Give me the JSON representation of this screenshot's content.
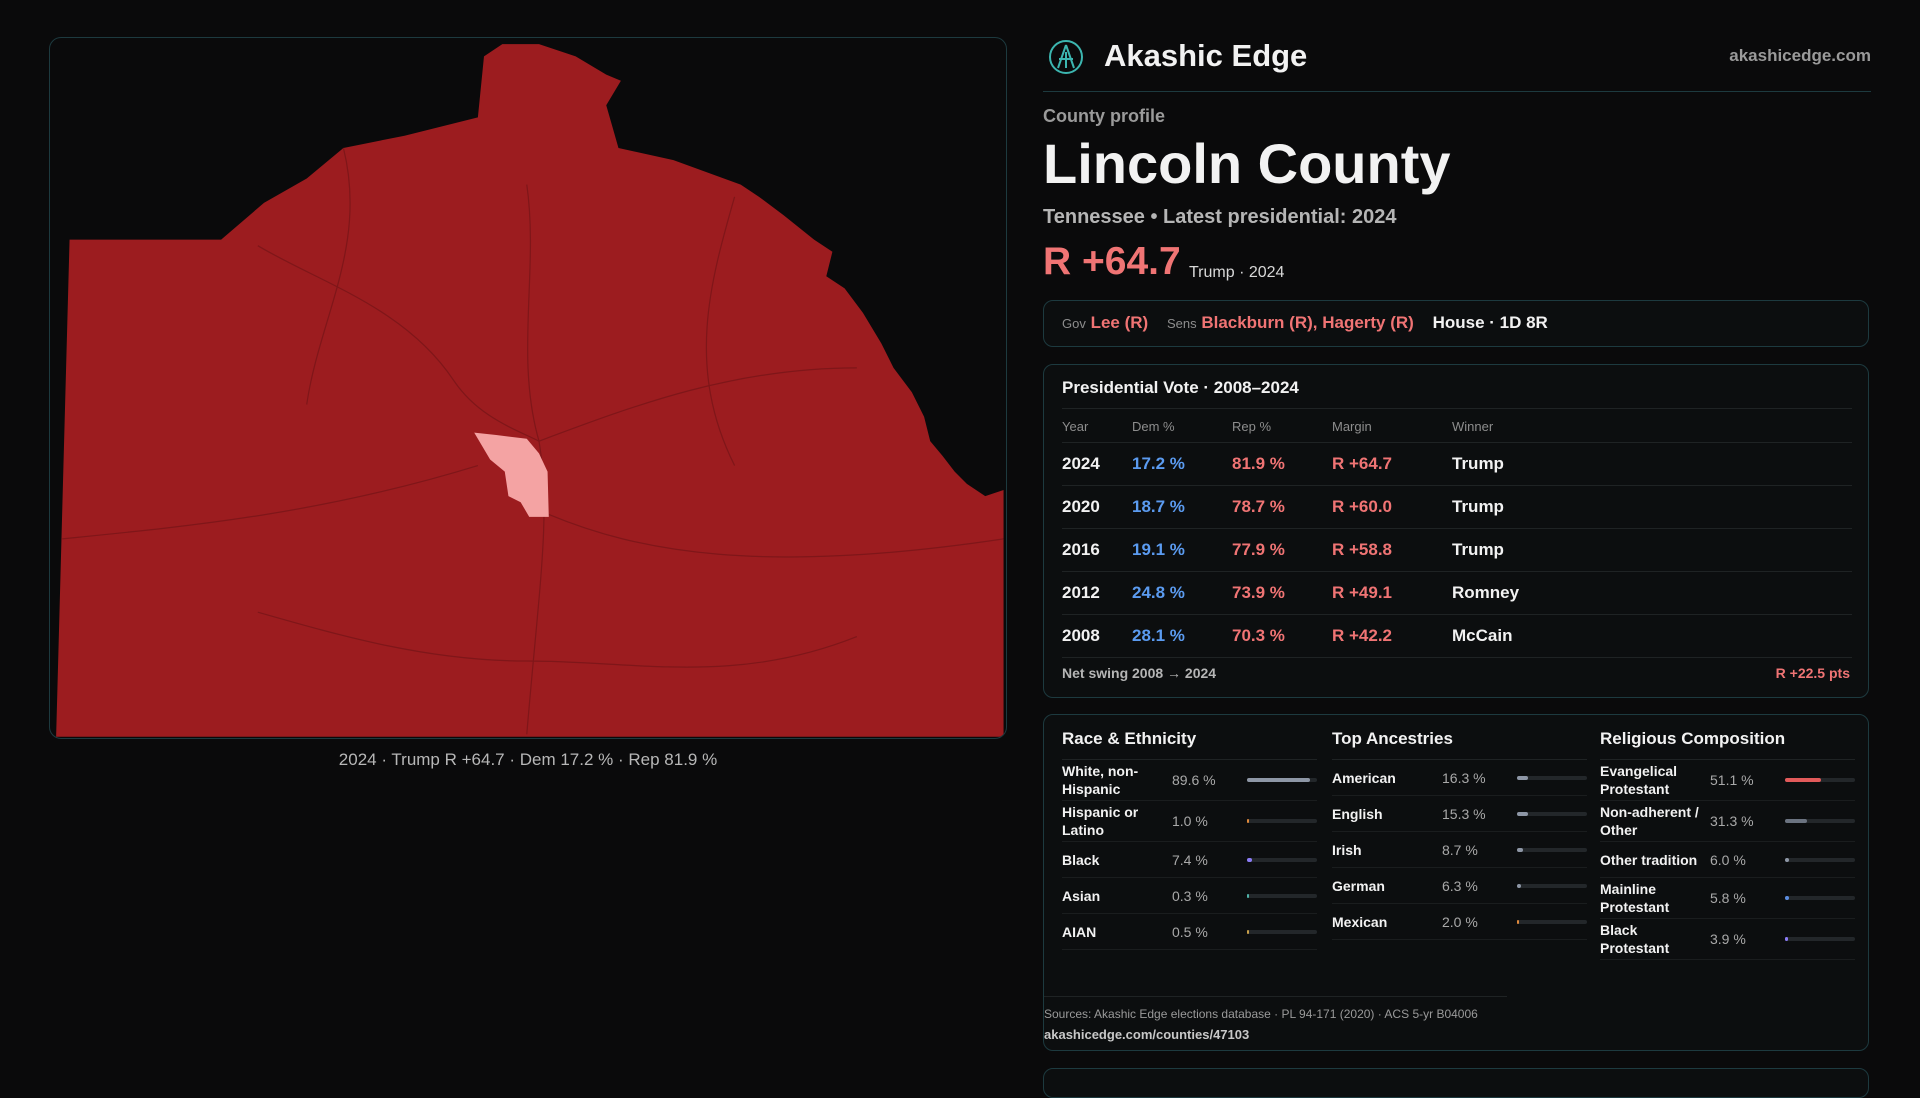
{
  "header": {
    "brand": "Akashic Edge",
    "site": "akashicedge.com"
  },
  "profile": {
    "kicker": "County profile",
    "name": "Lincoln County",
    "state": "Tennessee",
    "latest": "• Latest presidential: 2024",
    "margin": "R +64.7",
    "winner": "Trump · 2024"
  },
  "officials": {
    "gov_label": "Gov",
    "gov": "Lee (R)",
    "sens_label": "Sens",
    "sens": "Blackburn (R), Hagerty (R)",
    "house": "House · 1D 8R"
  },
  "presidential": {
    "title": "Presidential Vote · 2008–2024",
    "columns": [
      "Year",
      "Dem %",
      "Rep %",
      "Margin",
      "Winner"
    ],
    "rows": [
      [
        "2024",
        "17.2 %",
        "81.9 %",
        "R +64.7",
        "Trump"
      ],
      [
        "2020",
        "18.7 %",
        "78.7 %",
        "R +60.0",
        "Trump"
      ],
      [
        "2016",
        "19.1 %",
        "77.9 %",
        "R +58.8",
        "Trump"
      ],
      [
        "2012",
        "24.8 %",
        "73.9 %",
        "R +49.1",
        "Romney"
      ],
      [
        "2008",
        "28.1 %",
        "70.3 %",
        "R +42.2",
        "McCain"
      ]
    ],
    "swing_label": "Net swing 2008 → 2024",
    "swing": "R +22.5 pts"
  },
  "race": {
    "title": "Race & Ethnicity",
    "items": [
      {
        "name": "White, non-Hispanic",
        "value": 89.6,
        "label": "89.6 %",
        "color": "#8e97a6"
      },
      {
        "name": "Hispanic or Latino",
        "value": 1.0,
        "label": "1.0 %",
        "color": "#e08a3c"
      },
      {
        "name": "Black",
        "value": 7.4,
        "label": "7.4 %",
        "color": "#8b7cf6"
      },
      {
        "name": "Asian",
        "value": 0.3,
        "label": "0.3 %",
        "color": "#4fb3a9"
      },
      {
        "name": "AIAN",
        "value": 0.5,
        "label": "0.5 %",
        "color": "#c9a04a"
      }
    ]
  },
  "ancestry": {
    "title": "Top Ancestries",
    "items": [
      {
        "name": "American",
        "value": 16.3,
        "label": "16.3 %",
        "color": "#8e97a6"
      },
      {
        "name": "English",
        "value": 15.3,
        "label": "15.3 %",
        "color": "#8e97a6"
      },
      {
        "name": "Irish",
        "value": 8.7,
        "label": "8.7 %",
        "color": "#8e97a6"
      },
      {
        "name": "German",
        "value": 6.3,
        "label": "6.3 %",
        "color": "#8e97a6"
      },
      {
        "name": "Mexican",
        "value": 2.0,
        "label": "2.0 %",
        "color": "#e08a3c"
      }
    ]
  },
  "religion": {
    "title": "Religious Composition",
    "items": [
      {
        "name": "Evangelical Protestant",
        "value": 51.1,
        "label": "51.1 %",
        "color": "#e25a5a"
      },
      {
        "name": "Non-adherent / Other",
        "value": 31.3,
        "label": "31.3 %",
        "color": "#6b7380"
      },
      {
        "name": "Other tradition",
        "value": 6.0,
        "label": "6.0 %",
        "color": "#8e97a6"
      },
      {
        "name": "Mainline Protestant",
        "value": 5.8,
        "label": "5.8 %",
        "color": "#5b8de0"
      },
      {
        "name": "Black Protestant",
        "value": 3.9,
        "label": "3.9 %",
        "color": "#8b7cf6"
      }
    ]
  },
  "sources": {
    "text": "Sources: Akashic Edge elections database · PL 94-171 (2020) · ACS 5-yr B04006",
    "url": "akashicedge.com/counties/47103"
  },
  "map": {
    "caption": "2024 · Trump R +64.7 · Dem 17.2 % · Rep 81.9 %"
  }
}
